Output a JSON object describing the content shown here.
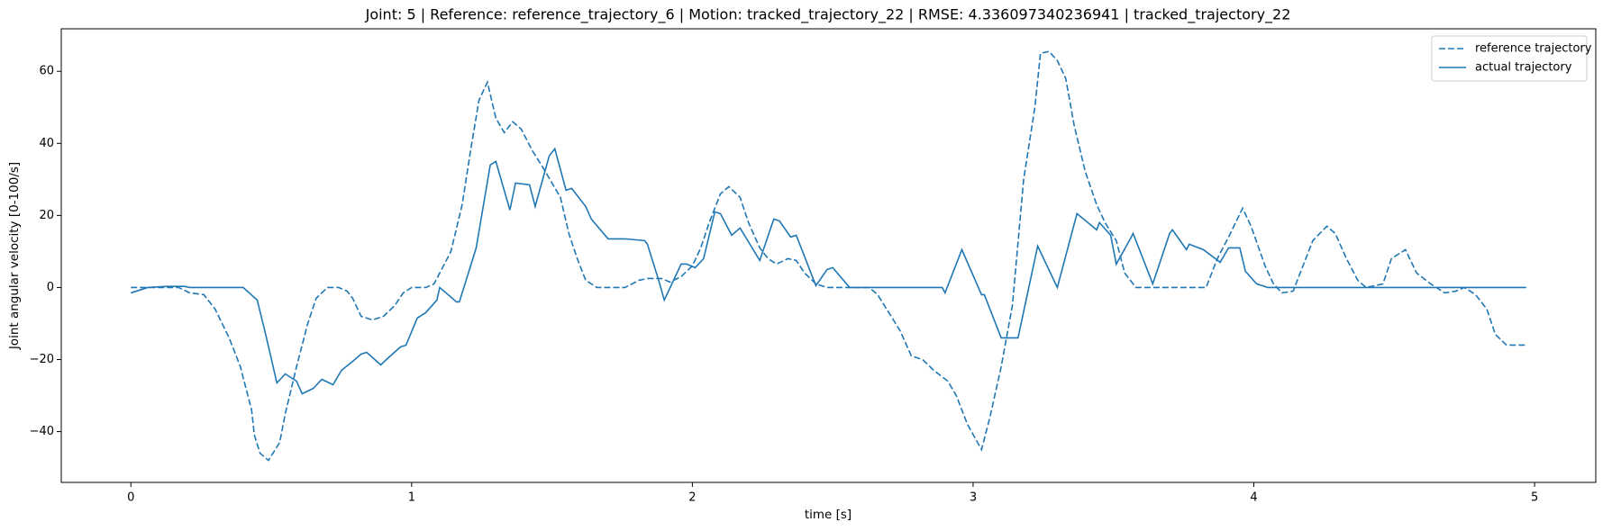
{
  "chart_data": {
    "type": "line",
    "title": "Joint: 5 | Reference: reference_trajectory_6 | Motion: tracked_trajectory_22 | RMSE: 4.336097340236941 | tracked_trajectory_22",
    "xlabel": "time [s]",
    "ylabel": "Joint angular velocity [0-100/s]",
    "xlim": [
      -0.248,
      5.218
    ],
    "ylim": [
      -54.1,
      71.8
    ],
    "xticks": [
      0,
      1,
      2,
      3,
      4,
      5
    ],
    "yticks": [
      {
        "value": -40,
        "label": "−40"
      },
      {
        "value": -20,
        "label": "−20"
      },
      0,
      20,
      40,
      60
    ],
    "legend": "upper right",
    "series": [
      {
        "name": "reference trajectory",
        "color": "#1f77b4",
        "dash": "dashed",
        "x": [
          0,
          0.08,
          0.13,
          0.17,
          0.21,
          0.26,
          0.3,
          0.35,
          0.39,
          0.43,
          0.44,
          0.46,
          0.49,
          0.53,
          0.55,
          0.59,
          0.63,
          0.66,
          0.7,
          0.74,
          0.77,
          0.79,
          0.82,
          0.86,
          0.9,
          0.94,
          0.97,
          1.0,
          1.05,
          1.08,
          1.1,
          1.14,
          1.18,
          1.21,
          1.24,
          1.27,
          1.3,
          1.33,
          1.36,
          1.39,
          1.43,
          1.47,
          1.5,
          1.53,
          1.56,
          1.59,
          1.62,
          1.66,
          1.76,
          1.81,
          1.84,
          1.89,
          1.92,
          1.96,
          2.0,
          2.03,
          2.06,
          2.1,
          2.13,
          2.17,
          2.2,
          2.24,
          2.27,
          2.3,
          2.34,
          2.37,
          2.4,
          2.44,
          2.48,
          2.63,
          2.66,
          2.7,
          2.74,
          2.78,
          2.82,
          2.86,
          2.91,
          2.94,
          2.98,
          3.03,
          3.06,
          3.1,
          3.14,
          3.18,
          3.22,
          3.24,
          3.27,
          3.3,
          3.33,
          3.36,
          3.4,
          3.44,
          3.47,
          3.51,
          3.54,
          3.57,
          3.58,
          3.83,
          3.87,
          3.91,
          3.96,
          3.99,
          4.04,
          4.07,
          4.1,
          4.14,
          4.17,
          4.21,
          4.26,
          4.29,
          4.33,
          4.37,
          4.4,
          4.46,
          4.49,
          4.54,
          4.58,
          4.63,
          4.68,
          4.72,
          4.75,
          4.79,
          4.83,
          4.86,
          4.9,
          4.97
        ],
        "values": [
          0,
          0,
          0,
          0,
          -1.5,
          -2,
          -6,
          -14,
          -22,
          -34,
          -41,
          -46,
          -48,
          -43,
          -35,
          -22,
          -10,
          -3,
          0,
          0,
          -1,
          -3,
          -8,
          -9,
          -8,
          -5,
          -1.5,
          0,
          0,
          1,
          4,
          10,
          23,
          38,
          52,
          57,
          47,
          43,
          46,
          44,
          38,
          33,
          29,
          25,
          15,
          8,
          2,
          0,
          0,
          2,
          2.5,
          2.5,
          1.5,
          3,
          6,
          11,
          18,
          26,
          28,
          25,
          18,
          11,
          8,
          6.5,
          8,
          7.5,
          4,
          1,
          0,
          0,
          -2,
          -7,
          -12,
          -19,
          -20,
          -23,
          -26,
          -30,
          -38,
          -45,
          -36,
          -22,
          -5,
          30,
          50,
          65,
          65.5,
          63,
          58,
          45,
          32,
          23,
          18,
          13,
          4,
          1,
          0,
          0,
          8,
          14,
          22,
          17,
          6,
          1,
          -1.5,
          -1,
          5,
          13,
          17,
          15,
          8,
          2,
          0,
          1,
          8,
          10.5,
          4,
          1,
          -1.5,
          -1,
          0,
          -2,
          -6,
          -13,
          -16,
          -16
        ]
      },
      {
        "name": "actual trajectory",
        "color": "#1f77b4",
        "dash": "solid",
        "x": [
          0,
          0.06,
          0.13,
          0.19,
          0.21,
          0.4,
          0.45,
          0.48,
          0.52,
          0.55,
          0.59,
          0.61,
          0.65,
          0.68,
          0.72,
          0.75,
          0.79,
          0.82,
          0.84,
          0.89,
          0.91,
          0.96,
          0.98,
          1.02,
          1.05,
          1.09,
          1.1,
          1.16,
          1.17,
          1.23,
          1.28,
          1.3,
          1.35,
          1.37,
          1.42,
          1.44,
          1.49,
          1.51,
          1.55,
          1.57,
          1.62,
          1.64,
          1.7,
          1.76,
          1.83,
          1.84,
          1.88,
          1.9,
          1.96,
          1.98,
          2.01,
          2.04,
          2.08,
          2.1,
          2.14,
          2.17,
          2.24,
          2.29,
          2.31,
          2.35,
          2.37,
          2.44,
          2.48,
          2.5,
          2.56,
          2.89,
          2.9,
          2.96,
          3.03,
          3.04,
          3.1,
          3.16,
          3.23,
          3.3,
          3.37,
          3.44,
          3.45,
          3.49,
          3.51,
          3.56,
          3.57,
          3.64,
          3.7,
          3.71,
          3.76,
          3.77,
          3.82,
          3.88,
          3.91,
          3.95,
          3.97,
          4.01,
          4.05,
          4.97
        ],
        "values": [
          -1.5,
          0,
          0.3,
          0.3,
          0,
          0,
          -3.5,
          -13,
          -26.5,
          -24,
          -26,
          -29.5,
          -28,
          -25.5,
          -27,
          -23,
          -20.5,
          -18.5,
          -18,
          -21.5,
          -20,
          -16.5,
          -16,
          -8.5,
          -7,
          -3.5,
          0,
          -4,
          -4,
          11,
          34,
          35,
          21.5,
          29,
          28.5,
          22.5,
          36.5,
          38.5,
          27,
          27.5,
          22.5,
          19,
          13.5,
          13.5,
          13,
          12,
          2,
          -3.5,
          6.5,
          6.5,
          5.5,
          8,
          21,
          20.5,
          14.5,
          16.5,
          7.5,
          19,
          18.5,
          14,
          14.5,
          0.5,
          5,
          5.5,
          0,
          0,
          -1.5,
          10.5,
          -2,
          -2,
          -14,
          -14,
          11.5,
          0,
          20.5,
          16,
          18,
          14.5,
          6.5,
          13.5,
          15,
          1,
          15,
          16,
          10.5,
          12,
          10.5,
          7,
          11,
          11,
          4.5,
          1,
          0,
          0
        ]
      }
    ]
  }
}
